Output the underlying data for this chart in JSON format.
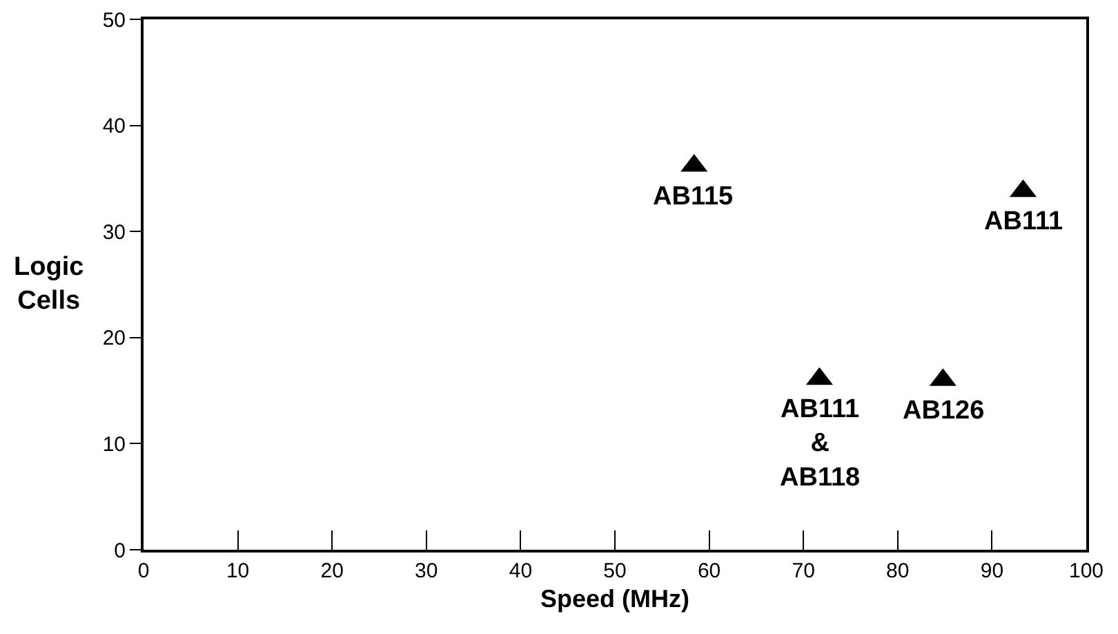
{
  "chart_data": {
    "type": "scatter",
    "xlabel": "Speed (MHz)",
    "ylabel": "Logic\nCells",
    "x": [
      58.4,
      93.3,
      71.7,
      84.8
    ],
    "values": [
      36.2,
      33.8,
      16.1,
      16
    ],
    "color": "#000000",
    "marker": "triangle",
    "grid": false,
    "legend": false,
    "xlim": [
      0,
      100
    ],
    "xticks": [
      0,
      10,
      20,
      30,
      40,
      50,
      60,
      70,
      80,
      90,
      100
    ],
    "ylim": [
      0,
      50
    ],
    "yticks": [
      0,
      10,
      20,
      30,
      40,
      50
    ],
    "annotations": [
      {
        "text": "AB115",
        "x": 58.4,
        "y": 36.2
      },
      {
        "text": "AB111",
        "x": 93.3,
        "y": 33.8
      },
      {
        "text": "AB111\n&\nAB118",
        "x": 71.7,
        "y": 16.1
      },
      {
        "text": "AB126",
        "x": 84.8,
        "y": 16
      }
    ]
  }
}
